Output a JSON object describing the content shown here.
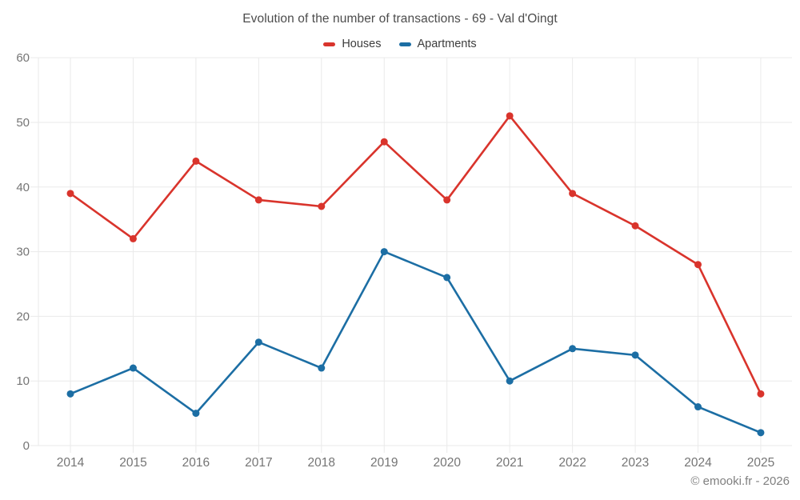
{
  "page": {
    "title": "Evolution of the number of transactions - 69 - Val d'Oingt",
    "footer": "© emooki.fr - 2026"
  },
  "legend": {
    "items": [
      {
        "label": "Houses"
      },
      {
        "label": "Apartments"
      }
    ]
  },
  "chart_data": {
    "type": "line",
    "title": "Evolution of the number of transactions - 69 - Val d'Oingt",
    "categories": [
      "2014",
      "2015",
      "2016",
      "2017",
      "2018",
      "2019",
      "2020",
      "2021",
      "2022",
      "2023",
      "2024",
      "2025"
    ],
    "series": [
      {
        "name": "Houses",
        "color": "#d9342c",
        "values": [
          39,
          32,
          44,
          38,
          37,
          47,
          38,
          51,
          39,
          34,
          28,
          8
        ]
      },
      {
        "name": "Apartments",
        "color": "#1c6ea4",
        "values": [
          8,
          12,
          5,
          16,
          12,
          30,
          26,
          10,
          15,
          14,
          6,
          2
        ]
      }
    ],
    "xlabel": "",
    "ylabel": "",
    "ylim": [
      0,
      60
    ],
    "yticks": [
      0,
      10,
      20,
      30,
      40,
      50,
      60
    ],
    "grid": true,
    "legend_position": "top",
    "grid_color": "#eaeaea",
    "axis_label_color": "#757575"
  }
}
